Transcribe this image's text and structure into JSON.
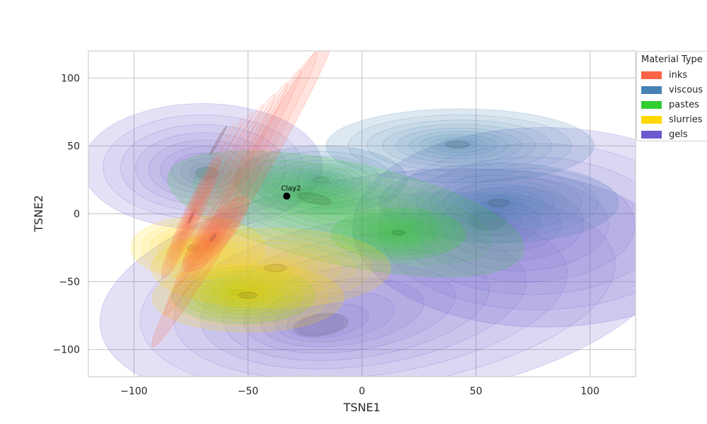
{
  "chart_data": {
    "type": "kde-contour",
    "title": "",
    "xlabel": "TSNE1",
    "ylabel": "TSNE2",
    "xlim": [
      -120,
      120
    ],
    "ylim": [
      -120,
      120
    ],
    "xticks": [
      -100,
      -50,
      0,
      50,
      100
    ],
    "yticks": [
      -100,
      -50,
      0,
      50,
      100
    ],
    "xtick_labels": [
      "−100",
      "−50",
      "0",
      "50",
      "100"
    ],
    "ytick_labels": [
      "−100",
      "−50",
      "0",
      "50",
      "100"
    ],
    "grid": true,
    "legend": {
      "title": "Material Type",
      "placement": "outside-top-right",
      "entries": [
        "inks",
        "viscous",
        "pastes",
        "slurries",
        "gels"
      ]
    },
    "series": [
      {
        "name": "gels",
        "color": "#6a5acd",
        "clusters": [
          {
            "center": [
              10,
              -55
            ],
            "sd": [
              60,
              40
            ],
            "rot": 8,
            "peak": [
              -20,
              -75
            ]
          },
          {
            "center": [
              -70,
              35
            ],
            "sd": [
              25,
              22
            ],
            "rot": 0,
            "peak": [
              -68,
              30
            ]
          },
          {
            "center": [
              80,
              -10
            ],
            "sd": [
              40,
              35
            ],
            "rot": 0,
            "peak": [
              55,
              -5
            ]
          }
        ]
      },
      {
        "name": "viscous",
        "color": "#4682b4",
        "clusters": [
          {
            "center": [
              43,
              50
            ],
            "sd": [
              28,
              13
            ],
            "rot": 0,
            "peak": [
              42,
              51
            ]
          },
          {
            "center": [
              60,
              8
            ],
            "sd": [
              25,
              14
            ],
            "rot": 0,
            "peak": [
              60,
              8
            ]
          },
          {
            "center": [
              -18,
              25
            ],
            "sd": [
              18,
              12
            ],
            "rot": 0,
            "peak": [
              -18,
              25
            ]
          }
        ]
      },
      {
        "name": "pastes",
        "color": "#32cd32",
        "clusters": [
          {
            "center": [
              -7,
              0
            ],
            "sd": [
              38,
              18
            ],
            "rot": -12,
            "peak": [
              -22,
              6
            ]
          },
          {
            "center": [
              16,
              -15
            ],
            "sd": [
              14,
              9
            ],
            "rot": 0,
            "peak": [
              16,
              -14
            ]
          },
          {
            "center": [
              -52,
              -60
            ],
            "sd": [
              15,
              10
            ],
            "rot": 0,
            "peak": [
              -55,
              -58
            ]
          }
        ]
      },
      {
        "name": "slurries",
        "color": "#ffd700",
        "clusters": [
          {
            "center": [
              -72,
              -25
            ],
            "sd": [
              14,
              11
            ],
            "rot": 0,
            "peak": [
              -74,
              -25
            ]
          },
          {
            "center": [
              -40,
              -40
            ],
            "sd": [
              25,
              14
            ],
            "rot": 0,
            "peak": [
              -38,
              -40
            ]
          },
          {
            "center": [
              -50,
              -62
            ],
            "sd": [
              20,
              12
            ],
            "rot": 0,
            "peak": [
              -50,
              -60
            ]
          }
        ]
      },
      {
        "name": "inks",
        "color": "#ff6347",
        "clusters": [
          {
            "center": [
              -52,
              18
            ],
            "sd": [
              38,
              4.5
            ],
            "rot": 60,
            "peak": [
              -39,
              52
            ]
          },
          {
            "center": [
              -64,
              -15
            ],
            "sd": [
              10,
              5
            ],
            "rot": 50,
            "peak": [
              -66,
              -15
            ]
          },
          {
            "center": [
              -75,
              -3
            ],
            "sd": [
              14,
              3
            ],
            "rot": 65,
            "peak": [
              -75,
              -3
            ]
          }
        ]
      }
    ],
    "annotations": [
      {
        "text": "Clay2",
        "x": -33,
        "y": 13
      }
    ]
  }
}
